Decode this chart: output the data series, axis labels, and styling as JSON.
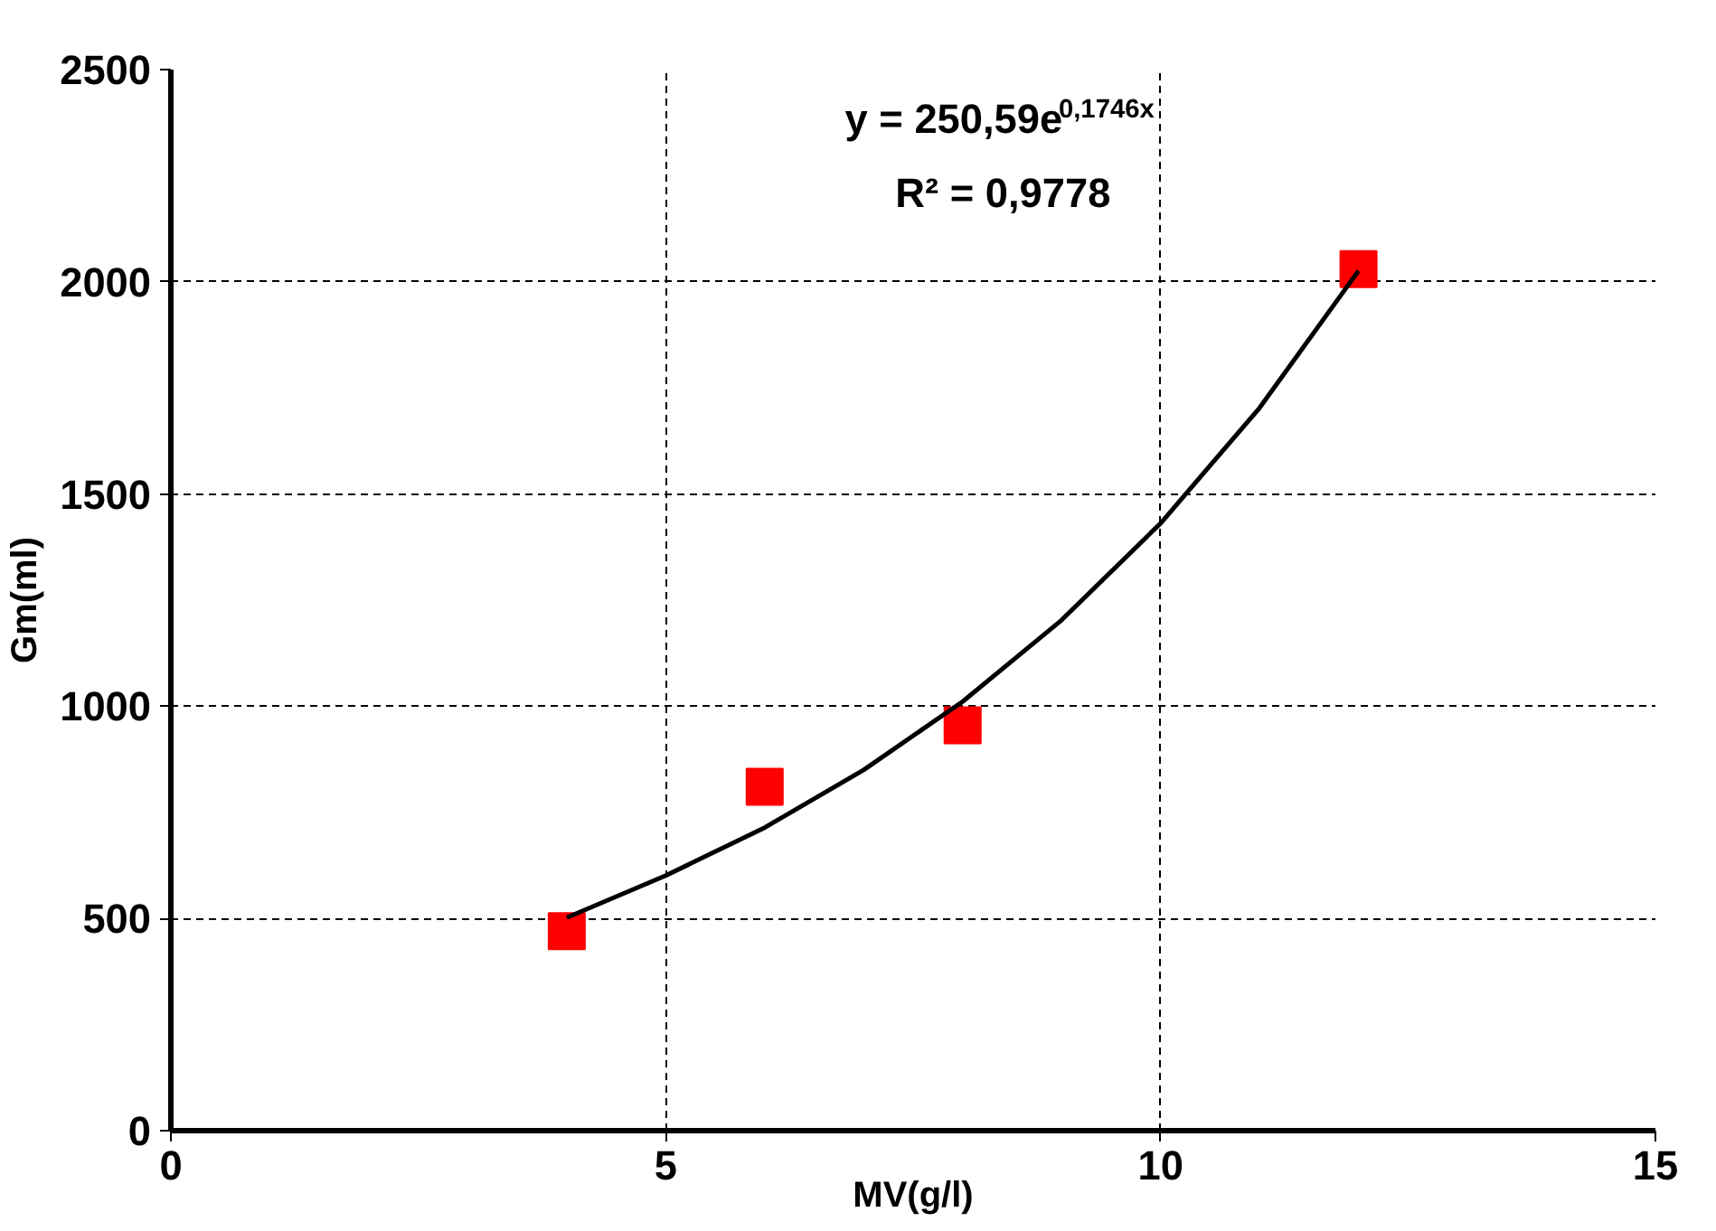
{
  "chart_data": {
    "type": "scatter",
    "xlabel": "MV(g/l)",
    "ylabel": "Gm(ml)",
    "xlim": [
      0,
      15
    ],
    "ylim": [
      0,
      2500
    ],
    "xticks": [
      0,
      5,
      10,
      15
    ],
    "yticks": [
      0,
      500,
      1000,
      1500,
      2000,
      2500
    ],
    "grid": true,
    "series": [
      {
        "marker": "square",
        "color": "#ff0000",
        "x": [
          4,
          6,
          8,
          12
        ],
        "values": [
          470,
          810,
          955,
          2030
        ]
      },
      {
        "type": "line",
        "color": "#000000",
        "x": [
          4,
          5,
          6,
          7,
          8,
          9,
          10,
          11,
          12
        ],
        "values": [
          502,
          601,
          714,
          850,
          1011,
          1203,
          1431,
          1703,
          2026
        ]
      }
    ],
    "annotations": [
      "y = 250,59e$^{0,1746x}$",
      "R² = 0,9778"
    ]
  }
}
